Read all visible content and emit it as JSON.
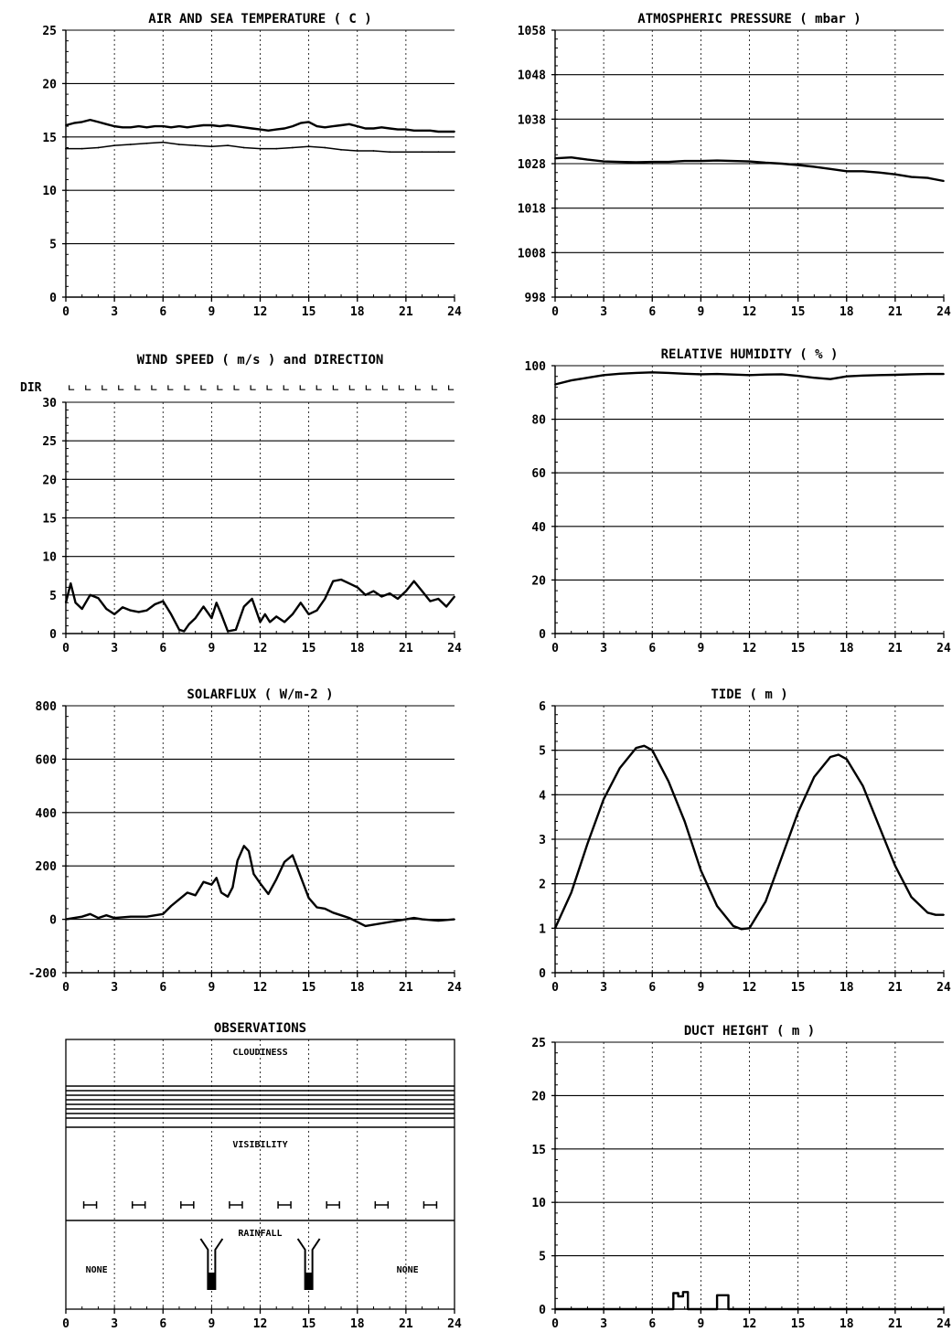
{
  "chart_data": [
    {
      "id": "air_sea",
      "type": "line",
      "title": "AIR AND SEA TEMPERATURE ( C )",
      "xlim": [
        0,
        24
      ],
      "ylim": [
        0,
        25
      ],
      "xticks": [
        0,
        3,
        6,
        9,
        12,
        15,
        18,
        21,
        24
      ],
      "xtick_labels": [
        "0",
        "3",
        "6",
        "9",
        "12",
        "15",
        "18",
        "21",
        "24"
      ],
      "yticks": [
        0,
        5,
        10,
        15,
        20,
        25
      ],
      "ytick_labels": [
        "0",
        "5",
        "10",
        "15",
        "20",
        "25"
      ],
      "hgrid": [
        5,
        10,
        15,
        20
      ],
      "series": [
        {
          "x": [
            0,
            0.5,
            1,
            1.5,
            2,
            2.5,
            3,
            3.5,
            4,
            4.5,
            5,
            5.5,
            6,
            6.5,
            7,
            7.5,
            8,
            8.5,
            9,
            9.5,
            10,
            10.5,
            11,
            11.5,
            12,
            12.5,
            13,
            13.5,
            14,
            14.5,
            15,
            15.5,
            16,
            16.5,
            17,
            17.5,
            18,
            18.5,
            19,
            19.5,
            20,
            20.5,
            21,
            21.5,
            22,
            22.5,
            23,
            23.5,
            24
          ],
          "y": [
            16.1,
            16.3,
            16.4,
            16.6,
            16.4,
            16.2,
            16.0,
            15.9,
            15.9,
            16.0,
            15.9,
            16.0,
            16.0,
            15.9,
            16.0,
            15.9,
            16.0,
            16.1,
            16.1,
            16.0,
            16.1,
            16.0,
            15.9,
            15.8,
            15.7,
            15.6,
            15.7,
            15.8,
            16.0,
            16.3,
            16.4,
            16.0,
            15.9,
            16.0,
            16.1,
            16.2,
            16.0,
            15.8,
            15.8,
            15.9,
            15.8,
            15.7,
            15.7,
            15.6,
            15.6,
            15.6,
            15.5,
            15.5,
            15.5
          ]
        },
        {
          "x": [
            0,
            1,
            2,
            3,
            4,
            5,
            6,
            7,
            8,
            9,
            10,
            11,
            12,
            13,
            14,
            15,
            16,
            17,
            18,
            19,
            20,
            21,
            22,
            23,
            24
          ],
          "y": [
            13.9,
            13.9,
            14.0,
            14.2,
            14.3,
            14.4,
            14.5,
            14.3,
            14.2,
            14.1,
            14.2,
            14.0,
            13.9,
            13.9,
            14.0,
            14.1,
            14.0,
            13.8,
            13.7,
            13.7,
            13.6,
            13.6,
            13.6,
            13.6,
            13.6
          ]
        }
      ]
    },
    {
      "id": "pressure",
      "type": "line",
      "title": "ATMOSPHERIC PRESSURE ( mbar )",
      "xlim": [
        0,
        24
      ],
      "ylim": [
        998,
        1058
      ],
      "xticks": [
        0,
        3,
        6,
        9,
        12,
        15,
        18,
        21,
        24
      ],
      "xtick_labels": [
        "0",
        "3",
        "6",
        "9",
        "12",
        "15",
        "18",
        "21",
        "24"
      ],
      "yticks": [
        998,
        1008,
        1018,
        1028,
        1038,
        1048,
        1058
      ],
      "ytick_labels": [
        "998",
        "1008",
        "1018",
        "1028",
        "1038",
        "1048",
        "1058"
      ],
      "hgrid": [
        1008,
        1018,
        1028,
        1038,
        1048
      ],
      "series": [
        {
          "x": [
            0,
            1,
            2,
            3,
            4,
            5,
            6,
            7,
            8,
            9,
            10,
            11,
            12,
            13,
            14,
            15,
            16,
            17,
            18,
            19,
            20,
            21,
            22,
            23,
            24
          ],
          "y": [
            1029.2,
            1029.4,
            1028.9,
            1028.5,
            1028.4,
            1028.3,
            1028.4,
            1028.4,
            1028.6,
            1028.6,
            1028.7,
            1028.6,
            1028.5,
            1028.2,
            1028.0,
            1027.7,
            1027.3,
            1026.8,
            1026.3,
            1026.3,
            1026.0,
            1025.6,
            1025.0,
            1024.8,
            1024.1
          ]
        }
      ]
    },
    {
      "id": "wind",
      "type": "line",
      "title": "WIND SPEED ( m/s ) and DIRECTION",
      "dir_label": "DIR",
      "dir_symbols": [
        "ㄴ",
        "ㄴ",
        "ㄴ",
        "ㄴ",
        "ㄴ",
        "ㄴ",
        "ㄴ",
        "ㄴ",
        "ㄴ",
        "ㄴ",
        "ㄴ",
        "ㄴ",
        "ㄴ",
        "ㄴ",
        "ㄴ",
        "ㄴ",
        "ㄴ",
        "ㄴ",
        "ㄴ",
        "ㄴ",
        "ㄴ",
        "ㄴ",
        "ㄴ",
        "ㄴ"
      ],
      "xlim": [
        0,
        24
      ],
      "ylim": [
        0,
        30
      ],
      "xticks": [
        0,
        3,
        6,
        9,
        12,
        15,
        18,
        21,
        24
      ],
      "xtick_labels": [
        "0",
        "3",
        "6",
        "9",
        "12",
        "15",
        "18",
        "21",
        "24"
      ],
      "yticks": [
        0,
        5,
        10,
        15,
        20,
        25,
        30
      ],
      "ytick_labels": [
        "0",
        "5",
        "10",
        "15",
        "20",
        "25",
        "30"
      ],
      "hgrid": [
        5,
        10,
        15,
        20,
        25
      ],
      "series": [
        {
          "x": [
            0,
            0.3,
            0.6,
            1,
            1.5,
            2,
            2.5,
            3,
            3.5,
            4,
            4.5,
            5,
            5.5,
            6,
            6.5,
            7,
            7.3,
            7.6,
            8,
            8.5,
            9,
            9.3,
            9.6,
            10,
            10.5,
            11,
            11.5,
            12,
            12.3,
            12.6,
            13,
            13.5,
            14,
            14.5,
            15,
            15.5,
            16,
            16.5,
            17,
            17.5,
            18,
            18.5,
            19,
            19.5,
            20,
            20.5,
            21,
            21.5,
            22,
            22.5,
            23,
            23.5,
            24
          ],
          "y": [
            4.0,
            6.5,
            4.0,
            3.2,
            5.0,
            4.6,
            3.2,
            2.5,
            3.4,
            3.0,
            2.8,
            3.0,
            3.8,
            4.2,
            2.5,
            0.5,
            0.3,
            1.2,
            2.0,
            3.5,
            2.0,
            4.0,
            2.5,
            0.3,
            0.5,
            3.5,
            4.5,
            1.5,
            2.5,
            1.5,
            2.2,
            1.5,
            2.5,
            4.0,
            2.5,
            3.0,
            4.5,
            6.8,
            7.0,
            6.5,
            6.0,
            5.0,
            5.5,
            4.8,
            5.2,
            4.5,
            5.5,
            6.8,
            5.5,
            4.2,
            4.5,
            3.5,
            4.8
          ]
        }
      ]
    },
    {
      "id": "humidity",
      "type": "line",
      "title": "RELATIVE HUMIDITY ( % )",
      "xlim": [
        0,
        24
      ],
      "ylim": [
        0,
        100
      ],
      "xticks": [
        0,
        3,
        6,
        9,
        12,
        15,
        18,
        21,
        24
      ],
      "xtick_labels": [
        "0",
        "3",
        "6",
        "9",
        "12",
        "15",
        "18",
        "21",
        "24"
      ],
      "yticks": [
        0,
        20,
        40,
        60,
        80,
        100
      ],
      "ytick_labels": [
        "0",
        "20",
        "40",
        "60",
        "80",
        "100"
      ],
      "hgrid": [
        20,
        40,
        60,
        80
      ],
      "series": [
        {
          "x": [
            0,
            1,
            2,
            3,
            4,
            5,
            6,
            7,
            8,
            9,
            10,
            11,
            12,
            13,
            14,
            15,
            16,
            17,
            18,
            19,
            20,
            21,
            22,
            23,
            24
          ],
          "y": [
            93.0,
            94.5,
            95.5,
            96.5,
            97.0,
            97.3,
            97.5,
            97.3,
            97.0,
            96.8,
            96.9,
            96.7,
            96.5,
            96.7,
            96.8,
            96.2,
            95.5,
            95.0,
            96.0,
            96.3,
            96.5,
            96.6,
            96.8,
            96.9,
            96.9
          ]
        }
      ]
    },
    {
      "id": "solar",
      "type": "line",
      "title": "SOLARFLUX ( W/m-2 )",
      "xlim": [
        0,
        24
      ],
      "ylim": [
        -200,
        800
      ],
      "xticks": [
        0,
        3,
        6,
        9,
        12,
        15,
        18,
        21,
        24
      ],
      "xtick_labels": [
        "0",
        "3",
        "6",
        "9",
        "12",
        "15",
        "18",
        "21",
        "24"
      ],
      "yticks": [
        -200,
        0,
        200,
        400,
        600,
        800
      ],
      "ytick_labels": [
        "-200",
        "0",
        "200",
        "400",
        "600",
        "800"
      ],
      "hgrid": [
        0,
        200,
        400,
        600
      ],
      "series": [
        {
          "x": [
            0,
            1,
            1.5,
            2,
            2.5,
            3,
            4,
            5,
            6,
            6.5,
            7,
            7.5,
            8,
            8.5,
            9,
            9.3,
            9.6,
            10,
            10.3,
            10.6,
            11,
            11.3,
            11.6,
            12,
            12.5,
            13,
            13.5,
            14,
            14.5,
            15,
            15.5,
            16,
            16.5,
            17,
            17.5,
            18,
            18.5,
            19,
            20,
            21,
            21.5,
            22,
            23,
            24
          ],
          "y": [
            0,
            10,
            20,
            5,
            15,
            5,
            10,
            10,
            20,
            50,
            75,
            100,
            90,
            140,
            130,
            155,
            100,
            85,
            120,
            220,
            275,
            255,
            170,
            135,
            95,
            150,
            215,
            240,
            160,
            80,
            45,
            40,
            25,
            15,
            5,
            -10,
            -25,
            -20,
            -10,
            0,
            5,
            0,
            -5,
            0
          ]
        }
      ]
    },
    {
      "id": "tide",
      "type": "line",
      "title": "TIDE ( m )",
      "xlim": [
        0,
        24
      ],
      "ylim": [
        0,
        6
      ],
      "xticks": [
        0,
        3,
        6,
        9,
        12,
        15,
        18,
        21,
        24
      ],
      "xtick_labels": [
        "0",
        "3",
        "6",
        "9",
        "12",
        "15",
        "18",
        "21",
        "24"
      ],
      "yticks": [
        0,
        1,
        2,
        3,
        4,
        5,
        6
      ],
      "ytick_labels": [
        "0",
        "1",
        "2",
        "3",
        "4",
        "5",
        "6"
      ],
      "hgrid": [
        1,
        2,
        3,
        4,
        5
      ],
      "series": [
        {
          "x": [
            0,
            1,
            2,
            3,
            4,
            5,
            5.5,
            6,
            7,
            8,
            9,
            10,
            11,
            11.5,
            12,
            13,
            14,
            15,
            16,
            17,
            17.5,
            18,
            19,
            20,
            21,
            22,
            23,
            23.5,
            24
          ],
          "y": [
            1.0,
            1.8,
            2.9,
            3.9,
            4.6,
            5.05,
            5.1,
            5.0,
            4.3,
            3.4,
            2.3,
            1.5,
            1.05,
            0.98,
            1.0,
            1.6,
            2.6,
            3.6,
            4.4,
            4.85,
            4.9,
            4.8,
            4.2,
            3.3,
            2.4,
            1.7,
            1.35,
            1.3,
            1.3
          ]
        }
      ]
    },
    {
      "id": "observations",
      "type": "bar",
      "title": "OBSERVATIONS",
      "section_labels": {
        "cloudiness": "CLOUDINESS",
        "visibility": "VISIBILITY",
        "rainfall": "RAINFALL"
      },
      "rain_none_left": "NONE",
      "rain_none_right": "NONE",
      "cloud_lines": 8,
      "rain_events_hours": [
        9,
        15
      ],
      "visibility_marks_hours": [
        1.5,
        4.5,
        7.5,
        10.5,
        13.5,
        16.5,
        19.5,
        22.5
      ],
      "xlim": [
        0,
        24
      ],
      "xticks": [
        0,
        3,
        6,
        9,
        12,
        15,
        18,
        21,
        24
      ],
      "xtick_labels": [
        "0",
        "3",
        "6",
        "9",
        "12",
        "15",
        "18",
        "21",
        "24"
      ]
    },
    {
      "id": "duct",
      "type": "line",
      "title": "DUCT HEIGHT ( m )",
      "xlim": [
        0,
        24
      ],
      "ylim": [
        0,
        25
      ],
      "xticks": [
        0,
        3,
        6,
        9,
        12,
        15,
        18,
        21,
        24
      ],
      "xtick_labels": [
        "0",
        "3",
        "6",
        "9",
        "12",
        "15",
        "18",
        "21",
        "24"
      ],
      "yticks": [
        0,
        5,
        10,
        15,
        20,
        25
      ],
      "ytick_labels": [
        "0",
        "5",
        "10",
        "15",
        "20",
        "25"
      ],
      "hgrid": [
        5,
        10,
        15,
        20
      ],
      "series": [
        {
          "x": [
            0,
            7.3,
            7.3,
            7.6,
            7.6,
            7.9,
            7.9,
            8.2,
            8.2,
            10.0,
            10.0,
            10.7,
            10.7,
            24
          ],
          "y": [
            0,
            0,
            1.5,
            1.5,
            1.2,
            1.2,
            1.6,
            1.6,
            0,
            0,
            1.3,
            1.3,
            0,
            0
          ]
        }
      ]
    }
  ]
}
